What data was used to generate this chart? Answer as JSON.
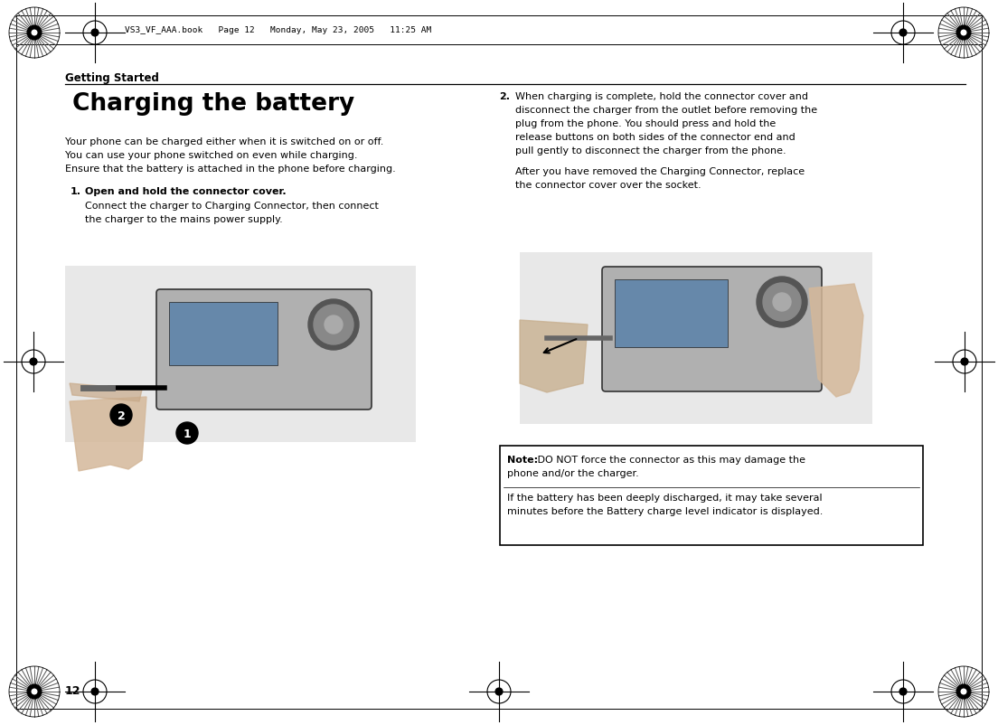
{
  "bg_color": "#ffffff",
  "header_text": "VS3_VF_AAA.book   Page 12   Monday, May 23, 2005   11:25 AM",
  "section_title": "Getting Started",
  "main_title": "Charging the battery",
  "intro_line1": "Your phone can be charged either when it is switched on or off.",
  "intro_line2": "You can use your phone switched on even while charging.",
  "intro_line3": "Ensure that the battery is attached in the phone before charging.",
  "step1_num": "1.",
  "step1_text": "Open and hold the connector cover.",
  "step1_sub1": "Connect the charger to Charging Connector, then connect",
  "step1_sub2": "the charger to the mains power supply.",
  "step2_num": "2.",
  "step2_line1": "When charging is complete, hold the connector cover and",
  "step2_line2": "disconnect the charger from the outlet before removing the",
  "step2_line3": "plug from the phone. You should press and hold the",
  "step2_line4": "release buttons on both sides of the connector end and",
  "step2_line5": "pull gently to disconnect the charger from the phone.",
  "step2_sub1": "After you have removed the Charging Connector, replace",
  "step2_sub2": "the connector cover over the socket.",
  "note_bold": "Note:",
  "note_line1": " DO NOT force the connector as this may damage the",
  "note_line2": "phone and/or the charger.",
  "note_line3": "If the battery has been deeply discharged, it may take several",
  "note_line4": "minutes before the Battery charge level indicator is displayed.",
  "page_number": "12"
}
